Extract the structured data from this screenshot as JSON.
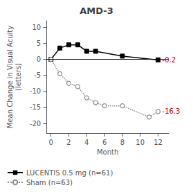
{
  "chart_data": {
    "type": "line",
    "title": "AMD-3",
    "xlabel": "Month",
    "ylabel": "Mean Change in Visual Acuity\n(letters)",
    "xlim": [
      -0.5,
      13.2
    ],
    "ylim": [
      -23,
      12
    ],
    "xticks": [
      0,
      2,
      4,
      6,
      8,
      10,
      12
    ],
    "yticks": [
      -20,
      -15,
      -10,
      -5,
      0,
      5,
      10
    ],
    "grid": false,
    "legend": "bottom",
    "series": [
      {
        "name": "LUCENTIS 0.5 mg (n=61)",
        "color": "#000000",
        "marker": "square",
        "line_style": "solid",
        "x": [
          0,
          1,
          2,
          3,
          4,
          5,
          8,
          12
        ],
        "values": [
          0,
          3.5,
          4.5,
          4.5,
          2.5,
          2.5,
          1.0,
          -0.2
        ]
      },
      {
        "name": "Sham (n=63)",
        "color": "#888888",
        "marker": "circle",
        "line_style": "dotted",
        "x": [
          0,
          1,
          2,
          3,
          4,
          5,
          6,
          8,
          11,
          12
        ],
        "values": [
          0,
          -4.5,
          -7.5,
          -8.5,
          -12.0,
          -13.5,
          -14.5,
          -14.5,
          -18.0,
          -16.3
        ]
      }
    ],
    "annotations": [
      {
        "text": "-0.2",
        "x": 12,
        "y": -0.2,
        "color": "#C00000"
      },
      {
        "text": "-16.3",
        "x": 12,
        "y": -16.3,
        "color": "#C00000"
      }
    ],
    "hlines": [
      0
    ]
  }
}
